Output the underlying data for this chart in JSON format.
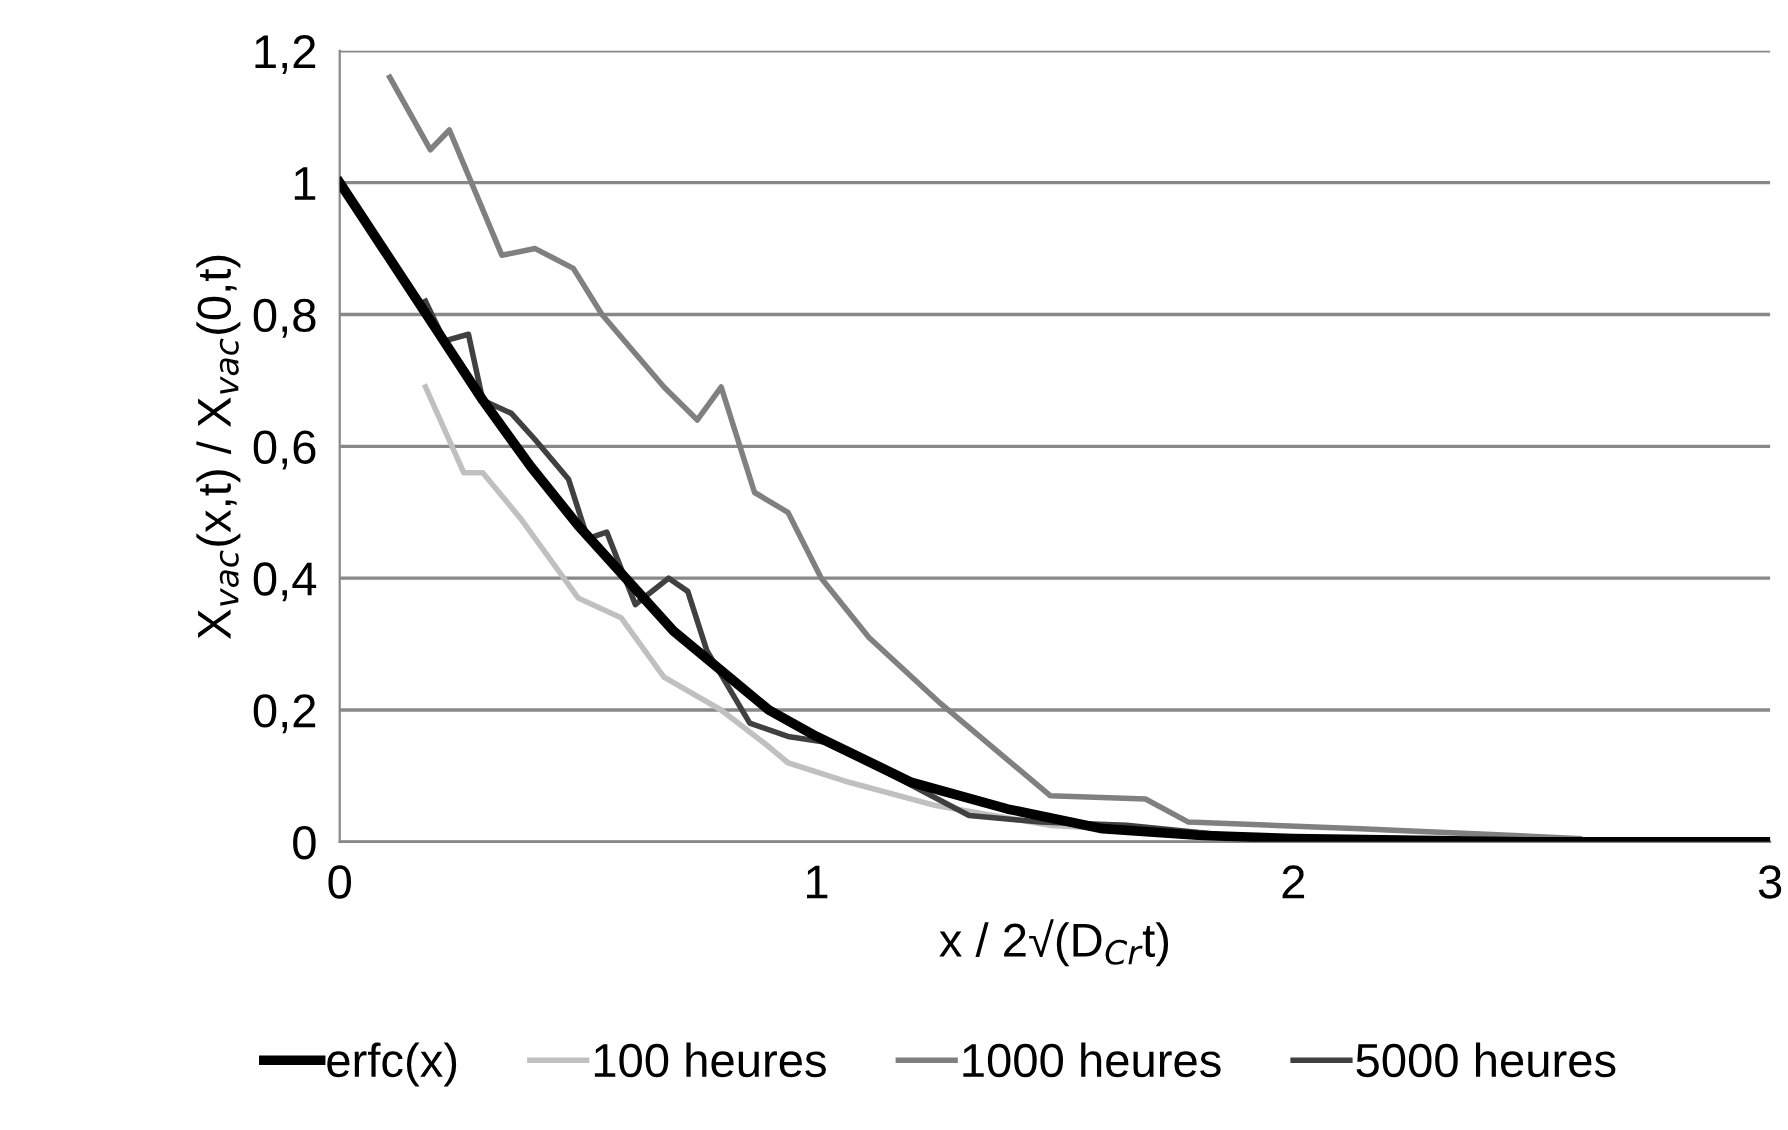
{
  "chart_data": {
    "type": "line",
    "xlabel": "x / 2√(D$_{Cr}$t)",
    "ylabel": "X$_{vac}$(x,t) / X$_{vac}$(0,t)",
    "xlim": [
      0,
      3
    ],
    "xticks": [
      0,
      1,
      2,
      3
    ],
    "ylim": [
      0,
      1.2
    ],
    "yticks": [
      0,
      {
        "value": 0.2,
        "label": "0,2"
      },
      {
        "value": 0.4,
        "label": "0,4"
      },
      {
        "value": 0.6,
        "label": "0,6"
      },
      {
        "value": 0.8,
        "label": "0,8"
      },
      1,
      {
        "value": 1.2,
        "label": "1,2"
      }
    ],
    "grid": "y",
    "legend": "bottom",
    "marker": "none",
    "line_style": "solid",
    "series": [
      {
        "name": "erfc(x)",
        "color": "#000000",
        "x": [
          0,
          0.1,
          0.2,
          0.3,
          0.4,
          0.5,
          0.6,
          0.7,
          0.8,
          0.9,
          1.0,
          1.2,
          1.4,
          1.6,
          1.8,
          2.0,
          2.5,
          3.0
        ],
        "values": [
          1,
          0.89,
          0.78,
          0.67,
          0.57,
          0.48,
          0.4,
          0.32,
          0.26,
          0.2,
          0.16,
          0.09,
          0.05,
          0.02,
          0.01,
          0.005,
          0,
          0
        ]
      },
      {
        "name": "100 heures",
        "color": "#c0c0c0",
        "x": [
          0.18,
          0.26,
          0.3,
          0.38,
          0.5,
          0.59,
          0.68,
          0.8,
          0.89,
          0.94,
          1.07,
          1.25,
          1.49,
          2.0,
          2.4
        ],
        "values": [
          0.69,
          0.56,
          0.56,
          0.49,
          0.37,
          0.34,
          0.25,
          0.2,
          0.15,
          0.12,
          0.09,
          0.055,
          0.025,
          0.005,
          0
        ]
      },
      {
        "name": "1000 heures",
        "color": "#808080",
        "x": [
          0.105,
          0.19,
          0.23,
          0.34,
          0.41,
          0.49,
          0.55,
          0.68,
          0.75,
          0.8,
          0.87,
          0.94,
          1.01,
          1.11,
          1.26,
          1.49,
          1.69,
          1.78,
          2.14,
          2.6
        ],
        "values": [
          1.16,
          1.05,
          1.08,
          0.89,
          0.9,
          0.87,
          0.8,
          0.69,
          0.64,
          0.69,
          0.53,
          0.5,
          0.4,
          0.31,
          0.21,
          0.07,
          0.065,
          0.03,
          0.02,
          0.005
        ]
      },
      {
        "name": "5000 heures",
        "color": "#404040",
        "x": [
          0.18,
          0.22,
          0.27,
          0.3,
          0.36,
          0.41,
          0.48,
          0.52,
          0.56,
          0.62,
          0.69,
          0.73,
          0.77,
          0.86,
          0.94,
          1.03,
          1.32,
          1.47,
          1.65,
          1.86,
          2.1
        ],
        "values": [
          0.82,
          0.76,
          0.77,
          0.67,
          0.65,
          0.61,
          0.55,
          0.46,
          0.47,
          0.36,
          0.4,
          0.38,
          0.29,
          0.18,
          0.16,
          0.15,
          0.04,
          0.03,
          0.025,
          0.01,
          0.005
        ]
      }
    ]
  }
}
